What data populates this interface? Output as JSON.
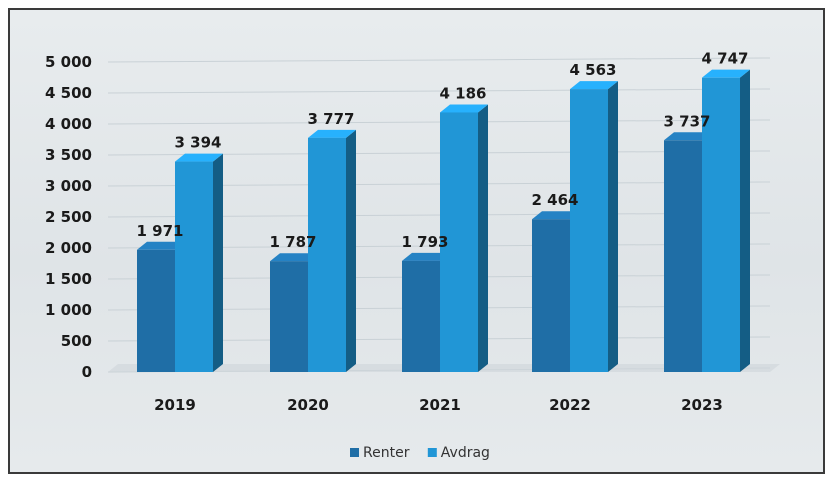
{
  "chart_data": {
    "type": "bar",
    "categories": [
      "2019",
      "2020",
      "2021",
      "2022",
      "2023"
    ],
    "series": [
      {
        "name": "Renter",
        "values": [
          1971,
          1787,
          1793,
          2464,
          3737
        ],
        "labels": [
          "1 971",
          "1 787",
          "1 793",
          "2 464",
          "3 737"
        ]
      },
      {
        "name": "Avdrag",
        "values": [
          3394,
          3777,
          4186,
          4563,
          4747
        ],
        "labels": [
          "3 394",
          "3 777",
          "4 186",
          "4 563",
          "4 747"
        ]
      }
    ],
    "ylim": [
      0,
      5000
    ],
    "y_ticks": [
      "0",
      "500",
      "1 000",
      "1 500",
      "2 000",
      "2 500",
      "3 000",
      "3 500",
      "4 000",
      "4 500",
      "5 000"
    ],
    "legend_position": "bottom",
    "colors": {
      "Renter": "#1f6ea6",
      "Avdrag": "#2196d6"
    }
  }
}
